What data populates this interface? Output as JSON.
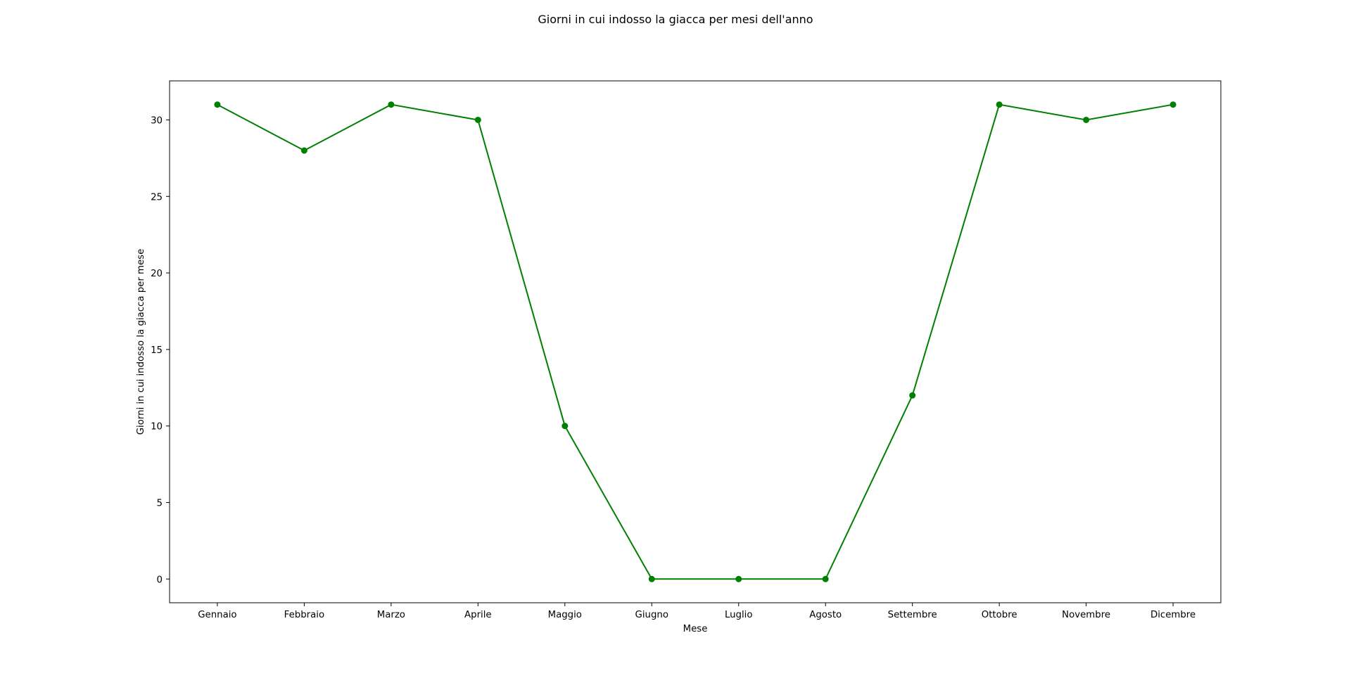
{
  "chart_data": {
    "type": "line",
    "title": "Giorni in cui indosso la giacca per mesi dell'anno",
    "xlabel": "Mese",
    "ylabel": "Giorni in cui indosso la giacca per mese",
    "categories": [
      "Gennaio",
      "Febbraio",
      "Marzo",
      "Aprile",
      "Maggio",
      "Giugno",
      "Luglio",
      "Agosto",
      "Settembre",
      "Ottobre",
      "Novembre",
      "Dicembre"
    ],
    "series": [
      {
        "values": [
          31,
          28,
          31,
          30,
          10,
          0,
          0,
          0,
          12,
          31,
          30,
          31
        ],
        "color": "#008000",
        "marker": "circle"
      }
    ],
    "ylim": [
      -1.55,
      32.55
    ],
    "yticks": [
      0,
      5,
      10,
      15,
      20,
      25,
      30
    ],
    "grid": false,
    "legend": "none"
  }
}
